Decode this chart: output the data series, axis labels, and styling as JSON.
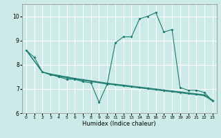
{
  "title": "",
  "xlabel": "Humidex (Indice chaleur)",
  "background_color": "#cceae7",
  "grid_color": "#ffffff",
  "line_color": "#1a7a6e",
  "xlim": [
    -0.5,
    23.5
  ],
  "ylim": [
    6,
    10.5
  ],
  "yticks": [
    6,
    7,
    8,
    9,
    10
  ],
  "xticks": [
    0,
    1,
    2,
    3,
    4,
    5,
    6,
    7,
    8,
    9,
    10,
    11,
    12,
    13,
    14,
    15,
    16,
    17,
    18,
    19,
    20,
    21,
    22,
    23
  ],
  "series": [
    {
      "x": [
        0,
        1,
        2,
        3,
        4,
        5,
        6,
        7,
        8,
        9,
        10,
        11,
        12,
        13,
        14,
        15,
        16,
        17,
        18,
        19,
        20,
        21,
        22,
        23
      ],
      "y": [
        8.6,
        8.3,
        7.7,
        7.6,
        7.5,
        7.4,
        7.4,
        7.3,
        7.25,
        6.45,
        7.2,
        8.9,
        9.15,
        9.15,
        9.9,
        10.0,
        10.15,
        9.35,
        9.45,
        7.05,
        6.95,
        6.95,
        6.85,
        6.5
      ]
    },
    {
      "x": [
        0,
        2,
        3,
        4,
        5,
        6,
        7,
        8,
        10,
        11,
        12,
        13,
        14,
        15,
        16,
        17,
        18,
        19,
        20,
        21,
        22,
        23
      ],
      "y": [
        8.6,
        7.7,
        7.58,
        7.52,
        7.46,
        7.4,
        7.35,
        7.3,
        7.2,
        7.16,
        7.12,
        7.08,
        7.04,
        7.0,
        6.96,
        6.92,
        6.88,
        6.84,
        6.8,
        6.76,
        6.72,
        6.5
      ]
    },
    {
      "x": [
        0,
        2,
        3,
        4,
        5,
        6,
        7,
        8,
        10,
        11,
        12,
        13,
        14,
        15,
        16,
        17,
        18,
        19,
        20,
        21,
        22,
        23
      ],
      "y": [
        8.6,
        7.7,
        7.6,
        7.54,
        7.48,
        7.42,
        7.37,
        7.32,
        7.22,
        7.18,
        7.14,
        7.1,
        7.06,
        7.02,
        6.98,
        6.94,
        6.9,
        6.86,
        6.82,
        6.78,
        6.74,
        6.52
      ]
    },
    {
      "x": [
        0,
        2,
        3,
        4,
        5,
        6,
        7,
        8,
        10,
        11,
        12,
        13,
        14,
        15,
        16,
        17,
        18,
        19,
        20,
        21,
        22,
        23
      ],
      "y": [
        8.6,
        7.7,
        7.62,
        7.56,
        7.5,
        7.44,
        7.39,
        7.34,
        7.24,
        7.2,
        7.16,
        7.12,
        7.08,
        7.04,
        7.0,
        6.96,
        6.92,
        6.88,
        6.84,
        6.8,
        6.76,
        6.54
      ]
    }
  ]
}
